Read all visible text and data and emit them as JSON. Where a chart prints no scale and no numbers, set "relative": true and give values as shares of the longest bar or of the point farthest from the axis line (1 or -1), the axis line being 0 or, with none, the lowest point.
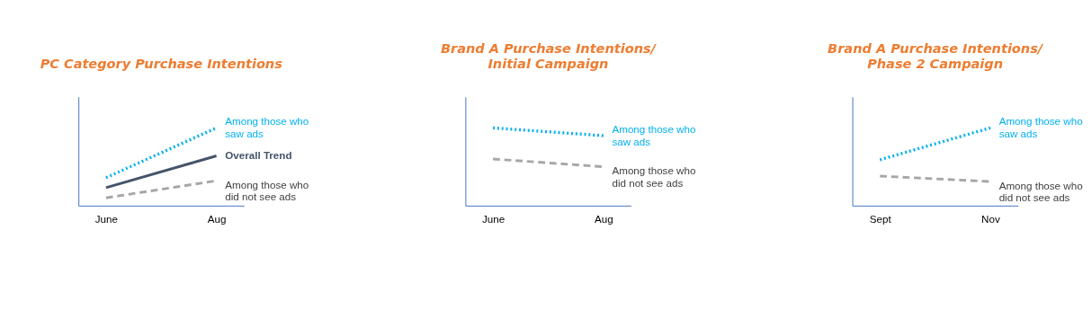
{
  "chart_data": [
    {
      "type": "line",
      "title": "PC Category Purchase Intentions",
      "categories": [
        "June",
        "Aug"
      ],
      "relative": true,
      "legend": false,
      "grid": false,
      "marker": "none",
      "series": [
        {
          "name": "Among those who\nsaw ads",
          "color": "#00b0f0",
          "line_style": "dotted",
          "values": [
            0.36,
            1
          ]
        },
        {
          "name": "Overall Trend",
          "color": "#44546a",
          "line_style": "solid",
          "values": [
            0.23,
            0.64
          ]
        },
        {
          "name": "Among those who\ndid not see ads",
          "color": "#a6a6a6",
          "line_style": "dashed",
          "values": [
            0.1,
            0.32
          ]
        }
      ]
    },
    {
      "type": "line",
      "title": "Brand A Purchase Intentions/\nInitial Campaign",
      "categories": [
        "June",
        "Aug"
      ],
      "relative": true,
      "legend": false,
      "grid": false,
      "marker": "none",
      "series": [
        {
          "name": "Among those who\nsaw ads",
          "color": "#00b0f0",
          "line_style": "dotted",
          "values": [
            1,
            0.9
          ]
        },
        {
          "name": "Among those who\ndid not see ads",
          "color": "#a6a6a6",
          "line_style": "dashed",
          "values": [
            0.6,
            0.5
          ]
        }
      ]
    },
    {
      "type": "line",
      "title": "Brand A Purchase Intentions/\nPhase 2 Campaign",
      "categories": [
        "Sept",
        "Nov"
      ],
      "relative": true,
      "legend": false,
      "grid": false,
      "marker": "none",
      "series": [
        {
          "name": "Among those who\nsaw ads",
          "color": "#00b0f0",
          "line_style": "dotted",
          "values": [
            0.59,
            1
          ]
        },
        {
          "name": "Among those who\ndid not see ads",
          "color": "#a6a6a6",
          "line_style": "dashed",
          "values": [
            0.38,
            0.31
          ]
        }
      ]
    }
  ]
}
